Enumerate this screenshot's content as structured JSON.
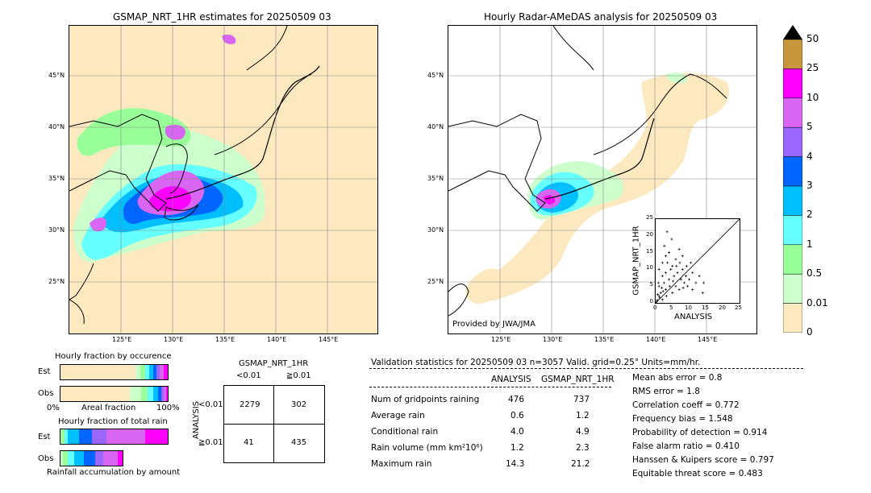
{
  "left_map": {
    "title": "GSMAP_NRT_1HR estimates for 20250509 03",
    "lat_labels": [
      "45°N",
      "40°N",
      "35°N",
      "30°N",
      "25°N"
    ],
    "lon_labels": [
      "125°E",
      "130°E",
      "135°E",
      "140°E",
      "145°E"
    ]
  },
  "right_map": {
    "title": "Hourly Radar-AMeDAS analysis for 20250509 03",
    "lat_labels": [
      "45°N",
      "40°N",
      "35°N",
      "30°N",
      "25°N"
    ],
    "lon_labels": [
      "125°E",
      "130°E",
      "135°E",
      "140°E",
      "145°E"
    ],
    "credit": "Provided by JWA/JMA"
  },
  "colorbar": {
    "labels": [
      "50",
      "25",
      "10",
      "5",
      "4",
      "3",
      "2",
      "1",
      "0.5",
      "0.01",
      "0"
    ],
    "colors": [
      "#c8963c",
      "#ff00ff",
      "#d966f2",
      "#9966ff",
      "#0066ff",
      "#00bfff",
      "#66ffff",
      "#99ff99",
      "#ccffcc",
      "#fde9c0"
    ],
    "extend_color": "#000000"
  },
  "scatter": {
    "xlabel": "ANALYSIS",
    "ylabel": "GSMAP_NRT_1HR",
    "ticks": [
      "0",
      "5",
      "10",
      "15",
      "20",
      "25"
    ]
  },
  "fraction_occurrence": {
    "title": "Hourly fraction by occurence",
    "rows": [
      "Est",
      "Obs"
    ],
    "axis_left": "0%",
    "axis_mid": "Areal fraction",
    "axis_right": "100%"
  },
  "fraction_total": {
    "title": "Hourly fraction of total rain",
    "rows": [
      "Est",
      "Obs"
    ],
    "caption": "Rainfall accumulation by amount"
  },
  "contingency": {
    "title": "GSMAP_NRT_1HR",
    "col_headers": [
      "<0.01",
      "≧0.01"
    ],
    "row_headers": [
      "<0.01",
      "≧0.01"
    ],
    "ylabel": "ANALYSIS",
    "cells": [
      [
        "2279",
        "302"
      ],
      [
        "41",
        "435"
      ]
    ]
  },
  "validation": {
    "header": "Validation statistics for 20250509 03  n=3057 Valid. grid=0.25° Units=mm/hr.",
    "col_analysis": "ANALYSIS",
    "col_gsmap": "GSMAP_NRT_1HR",
    "rows": [
      {
        "label": "Num of gridpoints raining",
        "a": "476",
        "g": "737"
      },
      {
        "label": "Average rain",
        "a": "0.6",
        "g": "1.2"
      },
      {
        "label": "Conditional rain",
        "a": "4.0",
        "g": "4.9"
      },
      {
        "label": "Rain volume (mm km²10⁶)",
        "a": "1.2",
        "g": "2.3"
      },
      {
        "label": "Maximum rain",
        "a": "14.3",
        "g": "21.2"
      }
    ],
    "scores": [
      "Mean abs error =    0.8",
      "RMS error =    1.8",
      "Correlation coeff =  0.772",
      "Frequency bias =  1.548",
      "Probability of detection =  0.914",
      "False alarm ratio =  0.410",
      "Hanssen & Kuipers score =  0.797",
      "Equitable threat score =  0.483"
    ]
  },
  "chart_data": {
    "type": "scatter",
    "xlabel": "ANALYSIS",
    "ylabel": "GSMAP_NRT_1HR",
    "xlim": [
      0,
      25
    ],
    "ylim": [
      0,
      25
    ],
    "note_values": "approximate sampled points",
    "points": [
      [
        0.5,
        0.8
      ],
      [
        1,
        2
      ],
      [
        1.5,
        3
      ],
      [
        2,
        1
      ],
      [
        2.5,
        6
      ],
      [
        3,
        9
      ],
      [
        3,
        4
      ],
      [
        3.5,
        12
      ],
      [
        4,
        15
      ],
      [
        4,
        7
      ],
      [
        4.5,
        10
      ],
      [
        5,
        11
      ],
      [
        5,
        3
      ],
      [
        5.5,
        8
      ],
      [
        6,
        13
      ],
      [
        6,
        5
      ],
      [
        6.5,
        9
      ],
      [
        7,
        16
      ],
      [
        7,
        4
      ],
      [
        7.5,
        7
      ],
      [
        8,
        10
      ],
      [
        8,
        14
      ],
      [
        8.5,
        6
      ],
      [
        9,
        8
      ],
      [
        9.5,
        5
      ],
      [
        10,
        7
      ],
      [
        11,
        9
      ],
      [
        11,
        4
      ],
      [
        12,
        6
      ],
      [
        13,
        8
      ],
      [
        14,
        3
      ],
      [
        14.3,
        6
      ],
      [
        1,
        5
      ],
      [
        2,
        8
      ],
      [
        2,
        12
      ],
      [
        3,
        14
      ],
      [
        1,
        10
      ],
      [
        0.8,
        6
      ],
      [
        1.2,
        1.5
      ],
      [
        0.3,
        0.4
      ],
      [
        0.6,
        2.5
      ],
      [
        1.8,
        4.5
      ],
      [
        2.2,
        3.5
      ],
      [
        3.2,
        2
      ],
      [
        4.2,
        5
      ],
      [
        5.2,
        6.5
      ],
      [
        6.2,
        11
      ],
      [
        7.2,
        12
      ],
      [
        8.2,
        4.5
      ],
      [
        9.2,
        11
      ],
      [
        10.5,
        12
      ],
      [
        2.6,
        17
      ],
      [
        3.4,
        21.2
      ],
      [
        4.8,
        19
      ]
    ]
  }
}
